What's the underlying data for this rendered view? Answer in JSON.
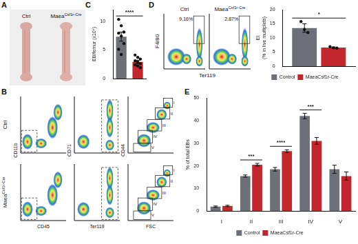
{
  "panel_labels": {
    "a": "A",
    "b": "B",
    "c": "C",
    "d": "D",
    "e": "E"
  },
  "femur_photo": {
    "labels": [
      "Ctrl",
      {
        "text": "Maea",
        "sup": "Csf1r-Cre"
      }
    ]
  },
  "gating": {
    "row_labels": [
      "Ctrl",
      {
        "text": "Maea",
        "sup": "Csf1r-Cre"
      }
    ],
    "plots": [
      {
        "x_label": "CD45",
        "y_label": "CD11b"
      },
      {
        "x_label": "Ter119",
        "y_label": "CD71"
      },
      {
        "x_label": "FSC",
        "y_label": "CD44",
        "gates": [
          "I",
          "II",
          "III",
          "IV",
          "V"
        ]
      }
    ]
  },
  "ei_plots": {
    "x_label": "Ter119",
    "y_label": "F4/80",
    "plots": [
      {
        "title": "Ctrl",
        "gate_label": "9.16%"
      },
      {
        "title": {
          "text": "Maea",
          "sup": "Csf1r-Cre"
        },
        "gate_label": "2.87%"
      }
    ]
  },
  "chart_data": [
    {
      "type": "bar",
      "y_label": "EB/femur (x10⁶)",
      "categories": [
        null,
        null
      ],
      "values": [
        7.3,
        2.9
      ],
      "errors": [
        0.8,
        0.3
      ],
      "points": [
        [
          10.3,
          9.2,
          8.1,
          7.9,
          7.4,
          6.1,
          5.1,
          4.2
        ],
        [
          4.1,
          3.7,
          3.4,
          3.1,
          2.9,
          2.6,
          2.4,
          2.2,
          1.9
        ]
      ],
      "colors": [
        "#6d7079",
        "#c1272d"
      ],
      "ylim": [
        0,
        12
      ],
      "yticks": [
        0,
        5,
        10
      ],
      "grid": false,
      "tick_labels": "y",
      "annotations": [
        {
          "text": "****",
          "categories": [
            0,
            1
          ]
        }
      ]
    },
    {
      "type": "bar",
      "y_label": [
        "EI",
        "(% in live multiplets)"
      ],
      "categories": [
        null
      ],
      "series": [
        {
          "name": "Control",
          "color": "#6d7079",
          "values": [
            13.5
          ],
          "errors": [
            1.5
          ],
          "points": [
            [
              15.8,
              13.0,
              11.9
            ]
          ]
        },
        {
          "name": "MaeaCsf1r-Cre",
          "color": "#c1272d",
          "values": [
            6.6
          ],
          "errors": [
            0.2
          ],
          "points": [
            [
              6.9,
              6.5,
              6.4
            ]
          ]
        }
      ],
      "ylim": [
        0,
        20
      ],
      "yticks": [
        0,
        5,
        10,
        15,
        20
      ],
      "grid": false,
      "legend": "bottom",
      "tick_labels": "y",
      "annotations": [
        {
          "text": "*",
          "categories": [
            0
          ]
        }
      ]
    },
    {
      "type": "bar",
      "y_label": "% of total EBs",
      "categories": [
        "I",
        "II",
        "III",
        "IV",
        "V"
      ],
      "series": [
        {
          "name": "Control",
          "color": "#6d7079",
          "values": [
            2.0,
            15.5,
            18.5,
            42.0,
            18.5
          ],
          "errors": [
            0.3,
            0.5,
            0.8,
            1.2,
            1.8
          ]
        },
        {
          "name": "MaeaCsf1r-Cre",
          "color": "#c1272d",
          "values": [
            2.3,
            20.5,
            26.5,
            31.0,
            15.5
          ],
          "errors": [
            0.3,
            0.6,
            0.6,
            1.5,
            1.8
          ]
        }
      ],
      "ylim": [
        0,
        50
      ],
      "yticks": [
        0,
        10,
        20,
        30,
        40,
        50
      ],
      "grid": false,
      "legend": "bottom",
      "annotations": [
        {
          "text": "***",
          "categories": [
            1
          ]
        },
        {
          "text": "****",
          "categories": [
            2
          ]
        },
        {
          "text": "***",
          "categories": [
            3
          ]
        }
      ]
    }
  ]
}
